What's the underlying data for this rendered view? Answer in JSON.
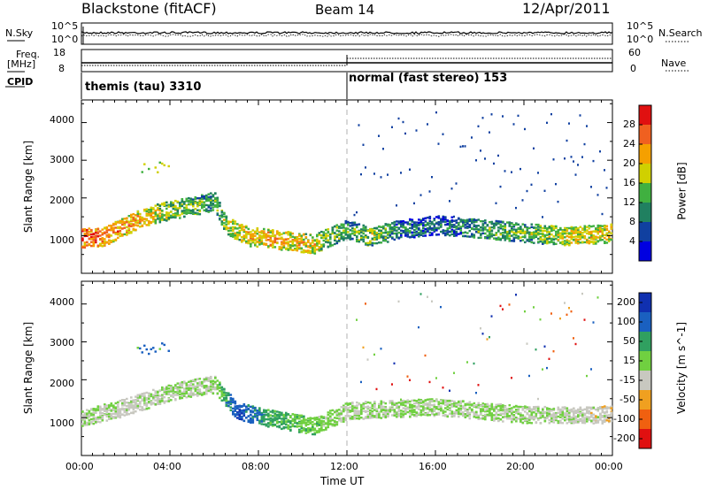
{
  "header": {
    "station": "Blackstone (fitACF)",
    "beam": "Beam 14",
    "date": "12/Apr/2011"
  },
  "top_panels": {
    "nsky_label": "N.Sky",
    "nsearch_label": "N.Search",
    "freq_label_1": "Freq.",
    "freq_label_2": "[MHz]",
    "nave_label": "Nave",
    "cpid_label": "CPID",
    "noise_ticks": [
      "10^5",
      "10^0"
    ],
    "freq_ticks": [
      "18",
      "8"
    ],
    "nave_ticks": [
      "60",
      "0"
    ],
    "cpid_segments": [
      {
        "label": "themis (tau) 3310",
        "start_hour": 0
      },
      {
        "label": "normal (fast stereo) 153",
        "start_hour": 12
      }
    ]
  },
  "axes": {
    "ylabel": "Slant Range [km]",
    "xlabel": "Time UT",
    "yticks": [
      "4000",
      "3000",
      "2000",
      "1000"
    ],
    "xticks": [
      "00:00",
      "04:00",
      "08:00",
      "12:00",
      "16:00",
      "20:00",
      "00:00"
    ]
  },
  "colorbars": {
    "power": {
      "label": "Power [dB]",
      "ticks": [
        "28",
        "24",
        "20",
        "16",
        "12",
        "8",
        "4"
      ],
      "colors": [
        "#e01010",
        "#f06020",
        "#f5a000",
        "#d0d000",
        "#40b040",
        "#208060",
        "#1040a0",
        "#0000e0"
      ]
    },
    "velocity": {
      "label": "Velocity [m s^-1]",
      "ticks": [
        "200",
        "100",
        "50",
        "15",
        "-15",
        "-50",
        "-100",
        "-200"
      ],
      "colors": [
        "#1030b0",
        "#1a60c0",
        "#30a060",
        "#70d040",
        "#c8c8c0",
        "#f0a020",
        "#f06010",
        "#e01010"
      ]
    }
  },
  "chart_data": [
    {
      "type": "heatmap",
      "title": "Power [dB]",
      "xlabel": "Time UT",
      "ylabel": "Slant Range [km]",
      "xlim": [
        0,
        24
      ],
      "ylim": [
        0,
        4600
      ],
      "zlim": [
        0,
        30
      ],
      "scatter_band": [
        {
          "t": 0.0,
          "range": 950,
          "power": 26
        },
        {
          "t": 1.0,
          "range": 1000,
          "power": 24
        },
        {
          "t": 2.0,
          "range": 1300,
          "power": 22
        },
        {
          "t": 3.0,
          "range": 1550,
          "power": 20
        },
        {
          "t": 4.0,
          "range": 1700,
          "power": 16
        },
        {
          "t": 5.0,
          "range": 1800,
          "power": 14
        },
        {
          "t": 6.0,
          "range": 1950,
          "power": 12
        },
        {
          "t": 6.5,
          "range": 1300,
          "power": 16
        },
        {
          "t": 7.5,
          "range": 1000,
          "power": 20
        },
        {
          "t": 9.0,
          "range": 900,
          "power": 22
        },
        {
          "t": 10.5,
          "range": 800,
          "power": 18
        },
        {
          "t": 12.0,
          "range": 1200,
          "power": 12
        },
        {
          "t": 13.0,
          "range": 1000,
          "power": 16
        },
        {
          "t": 14.5,
          "range": 1200,
          "power": 10
        },
        {
          "t": 16.0,
          "range": 1300,
          "power": 8
        },
        {
          "t": 18.0,
          "range": 1200,
          "power": 12
        },
        {
          "t": 20.0,
          "range": 1100,
          "power": 14
        },
        {
          "t": 22.0,
          "range": 1000,
          "power": 18
        },
        {
          "t": 24.0,
          "range": 1100,
          "power": 20
        }
      ]
    },
    {
      "type": "heatmap",
      "title": "Velocity [m s^-1]",
      "xlabel": "Time UT",
      "ylabel": "Slant Range [km]",
      "xlim": [
        0,
        24
      ],
      "ylim": [
        0,
        4600
      ],
      "zlim": [
        -200,
        200
      ],
      "scatter_band": [
        {
          "t": 0.0,
          "range": 1000,
          "velocity": 0
        },
        {
          "t": 2.0,
          "range": 1300,
          "velocity": -20
        },
        {
          "t": 4.0,
          "range": 1700,
          "velocity": 0
        },
        {
          "t": 6.0,
          "range": 1900,
          "velocity": 5
        },
        {
          "t": 7.0,
          "range": 1200,
          "velocity": 150
        },
        {
          "t": 8.5,
          "range": 1000,
          "velocity": 60
        },
        {
          "t": 10.5,
          "range": 800,
          "velocity": 30
        },
        {
          "t": 12.0,
          "range": 1200,
          "velocity": 0
        },
        {
          "t": 16.0,
          "range": 1300,
          "velocity": 5
        },
        {
          "t": 20.0,
          "range": 1100,
          "velocity": 0
        },
        {
          "t": 24.0,
          "range": 1100,
          "velocity": -30
        }
      ]
    }
  ]
}
